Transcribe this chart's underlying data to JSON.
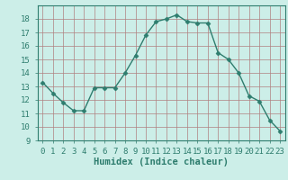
{
  "x": [
    0,
    1,
    2,
    3,
    4,
    5,
    6,
    7,
    8,
    9,
    10,
    11,
    12,
    13,
    14,
    15,
    16,
    17,
    18,
    19,
    20,
    21,
    22,
    23
  ],
  "y": [
    13.3,
    12.5,
    11.8,
    11.2,
    11.2,
    12.9,
    12.9,
    12.9,
    14.0,
    15.3,
    16.8,
    17.8,
    18.0,
    18.3,
    17.8,
    17.7,
    17.7,
    15.5,
    15.0,
    14.0,
    12.3,
    11.9,
    10.5,
    9.7
  ],
  "line_color": "#2e7d6e",
  "marker": "D",
  "marker_size": 2.5,
  "bg_color": "#cceee8",
  "grid_color_major": "#b08080",
  "grid_color_minor": "#d4b0b0",
  "xlabel": "Humidex (Indice chaleur)",
  "xlim": [
    -0.5,
    23.5
  ],
  "ylim": [
    9,
    19.0
  ],
  "yticks": [
    9,
    10,
    11,
    12,
    13,
    14,
    15,
    16,
    17,
    18
  ],
  "xticks": [
    0,
    1,
    2,
    3,
    4,
    5,
    6,
    7,
    8,
    9,
    10,
    11,
    12,
    13,
    14,
    15,
    16,
    17,
    18,
    19,
    20,
    21,
    22,
    23
  ],
  "axis_color": "#2e7d6e",
  "font_size_label": 7.5,
  "font_size_tick": 6.5,
  "line_width": 1.0
}
